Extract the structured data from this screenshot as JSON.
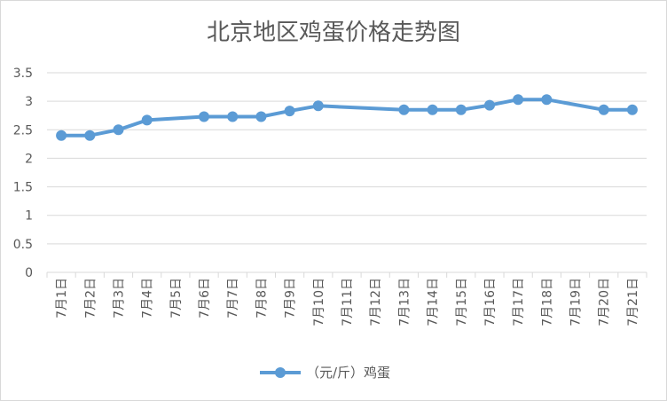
{
  "chart_data": {
    "type": "line",
    "title": "北京地区鸡蛋价格走势图",
    "categories": [
      "7月1日",
      "7月2日",
      "7月3日",
      "7月4日",
      "7月5日",
      "7月6日",
      "7月7日",
      "7月8日",
      "7月9日",
      "7月10日",
      "7月11日",
      "7月12日",
      "7月13日",
      "7月14日",
      "7月15日",
      "7月16日",
      "7月17日",
      "7月18日",
      "7月19日",
      "7月20日",
      "7月21日"
    ],
    "series": [
      {
        "name": "（元/斤）鸡蛋",
        "values": [
          2.4,
          2.4,
          2.5,
          2.67,
          null,
          2.73,
          2.73,
          2.73,
          2.83,
          2.92,
          null,
          null,
          2.85,
          2.85,
          2.85,
          2.93,
          3.03,
          3.03,
          null,
          2.85,
          2.85
        ]
      }
    ],
    "y_ticks": [
      "0",
      "0.5",
      "1",
      "1.5",
      "2",
      "2.5",
      "3",
      "3.5"
    ],
    "ylim": [
      0,
      3.5
    ],
    "grid": true,
    "legend": "bottom",
    "color": "#5b9bd5",
    "gridColor": "#d9d9d9"
  }
}
